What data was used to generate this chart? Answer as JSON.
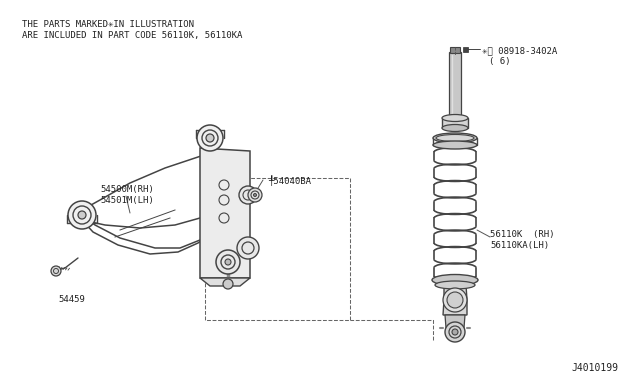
{
  "bg_color": "#ffffff",
  "fig_width": 6.4,
  "fig_height": 3.72,
  "dpi": 100,
  "header_line1": "THE PARTS MARKED✳IN ILLUSTRATION",
  "header_line2": "ARE INCLUDED IN PART CODE 56110K, 56110KA",
  "part_labels": {
    "54500M_RH": "54500M(RH)",
    "54501M_LH": "54501M(LH)",
    "540408A": "╀54040BA",
    "54459": "54459",
    "56110K_RH": "56110K  (RH)",
    "56110KA_LH": "56110KA(LH)",
    "08918_3402A": "✳Ⓝ 08918-3402A",
    "08918_qty": "( 6)",
    "J4010199": "J4010199"
  },
  "lc": "#444444",
  "tc": "#222222",
  "dc": "#555555"
}
